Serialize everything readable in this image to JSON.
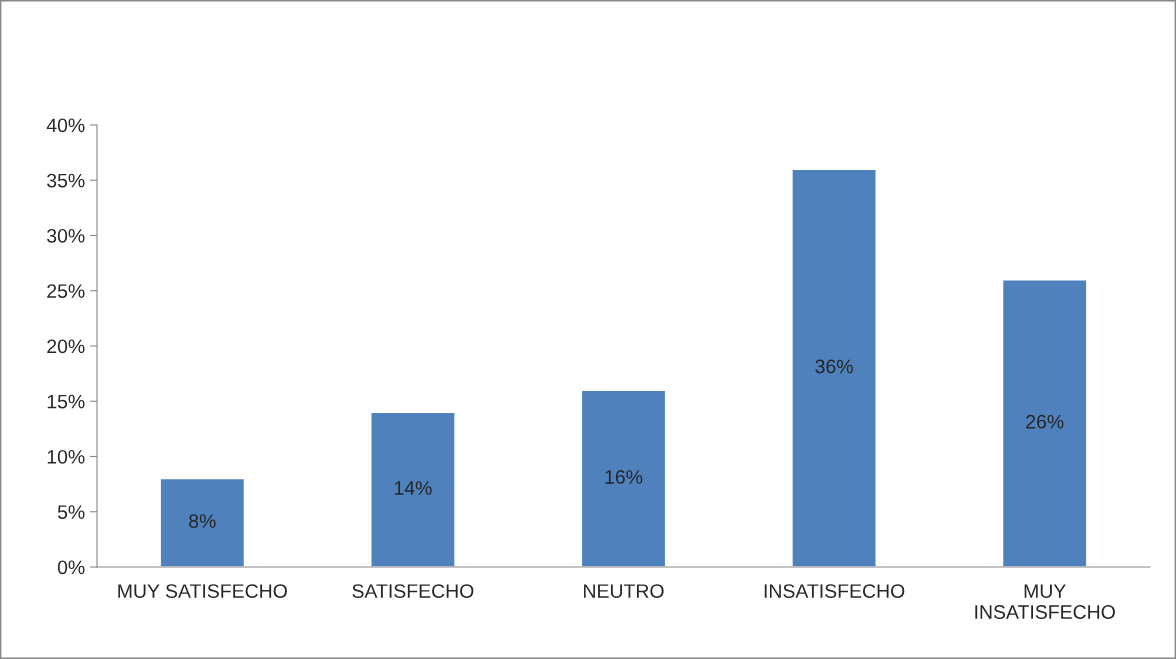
{
  "chart_data": {
    "type": "bar",
    "categories": [
      "MUY SATISFECHO",
      "SATISFECHO",
      "NEUTRO",
      "INSATISFECHO",
      "MUY INSATISFECHO"
    ],
    "values": [
      8,
      14,
      16,
      36,
      26
    ],
    "value_labels": [
      "8%",
      "14%",
      "16%",
      "36%",
      "26%"
    ],
    "color": "#4f81bd",
    "ylim": [
      0,
      40
    ],
    "yticks": [
      {
        "value": 0,
        "label": "0%"
      },
      {
        "value": 5,
        "label": "5%"
      },
      {
        "value": 10,
        "label": "10%"
      },
      {
        "value": 15,
        "label": "15%"
      },
      {
        "value": 20,
        "label": "20%"
      },
      {
        "value": 25,
        "label": "25%"
      },
      {
        "value": 30,
        "label": "30%"
      },
      {
        "value": 35,
        "label": "35%"
      },
      {
        "value": 40,
        "label": "40%"
      }
    ],
    "grid": false,
    "legend": false
  }
}
